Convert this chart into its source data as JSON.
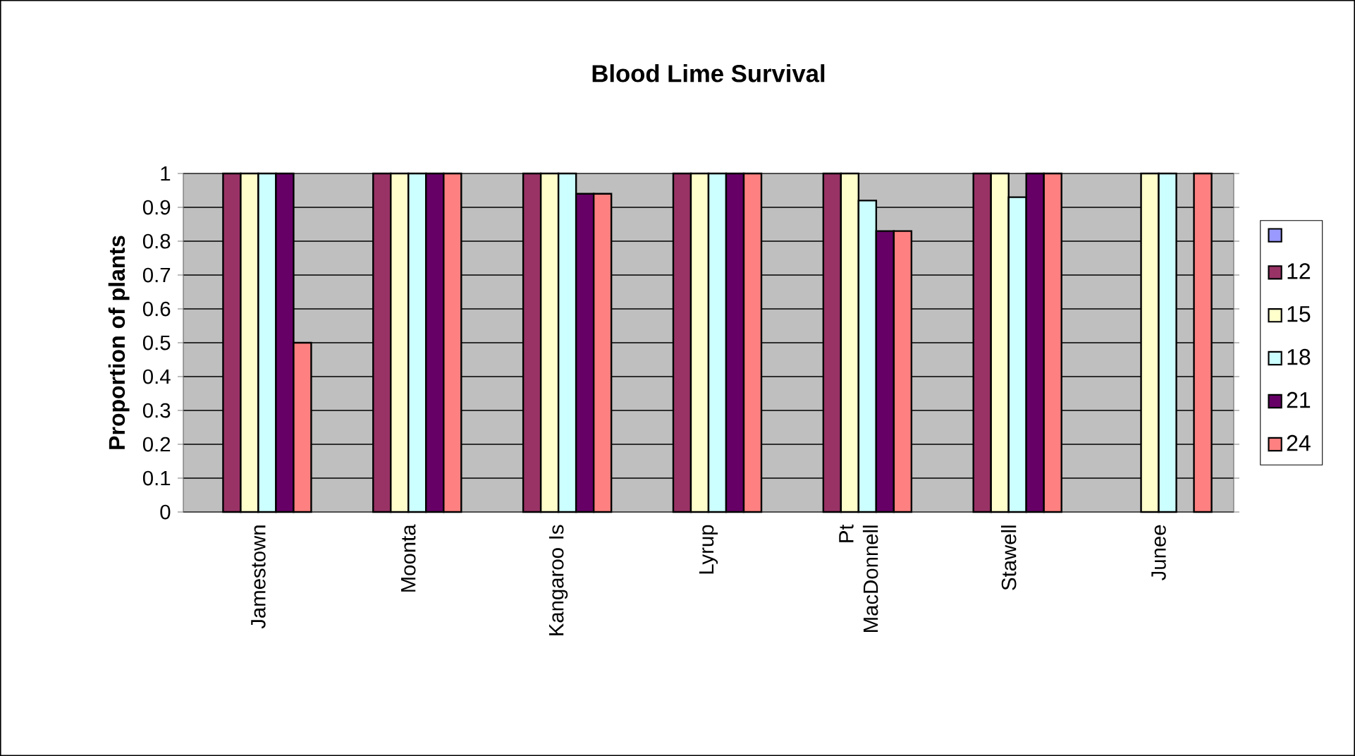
{
  "chart_data": {
    "type": "bar",
    "title": "Blood Lime Survival",
    "ylabel": "Proportion of plants",
    "categories": [
      "Jamestown",
      "Moonta",
      "Kangaroo Is",
      "Lyrup",
      "Pt MacDonnell",
      "Stawell",
      "Junee"
    ],
    "series": [
      {
        "color": "#9999ff",
        "values": [
          null,
          null,
          null,
          null,
          null,
          null,
          null
        ]
      },
      {
        "name": "12",
        "color": "#993366",
        "values": [
          1,
          1,
          1,
          1,
          1,
          1,
          null
        ]
      },
      {
        "name": "15",
        "color": "#ffffcc",
        "values": [
          1,
          1,
          1,
          1,
          1,
          1,
          1
        ]
      },
      {
        "name": "18",
        "color": "#ccffff",
        "values": [
          1,
          1,
          1,
          1,
          0.92,
          0.93,
          1
        ]
      },
      {
        "name": "21",
        "color": "#660066",
        "values": [
          1,
          1,
          0.94,
          1,
          0.83,
          1,
          null
        ]
      },
      {
        "name": "24",
        "color": "#ff8080",
        "values": [
          0.5,
          1,
          0.94,
          1,
          0.83,
          1,
          1
        ]
      }
    ],
    "ylim": [
      0,
      1
    ],
    "yticks": [
      0,
      0.1,
      0.2,
      0.3,
      0.4,
      0.5,
      0.6,
      0.7,
      0.8,
      0.9,
      1
    ],
    "grid": "y",
    "legend": "right"
  }
}
